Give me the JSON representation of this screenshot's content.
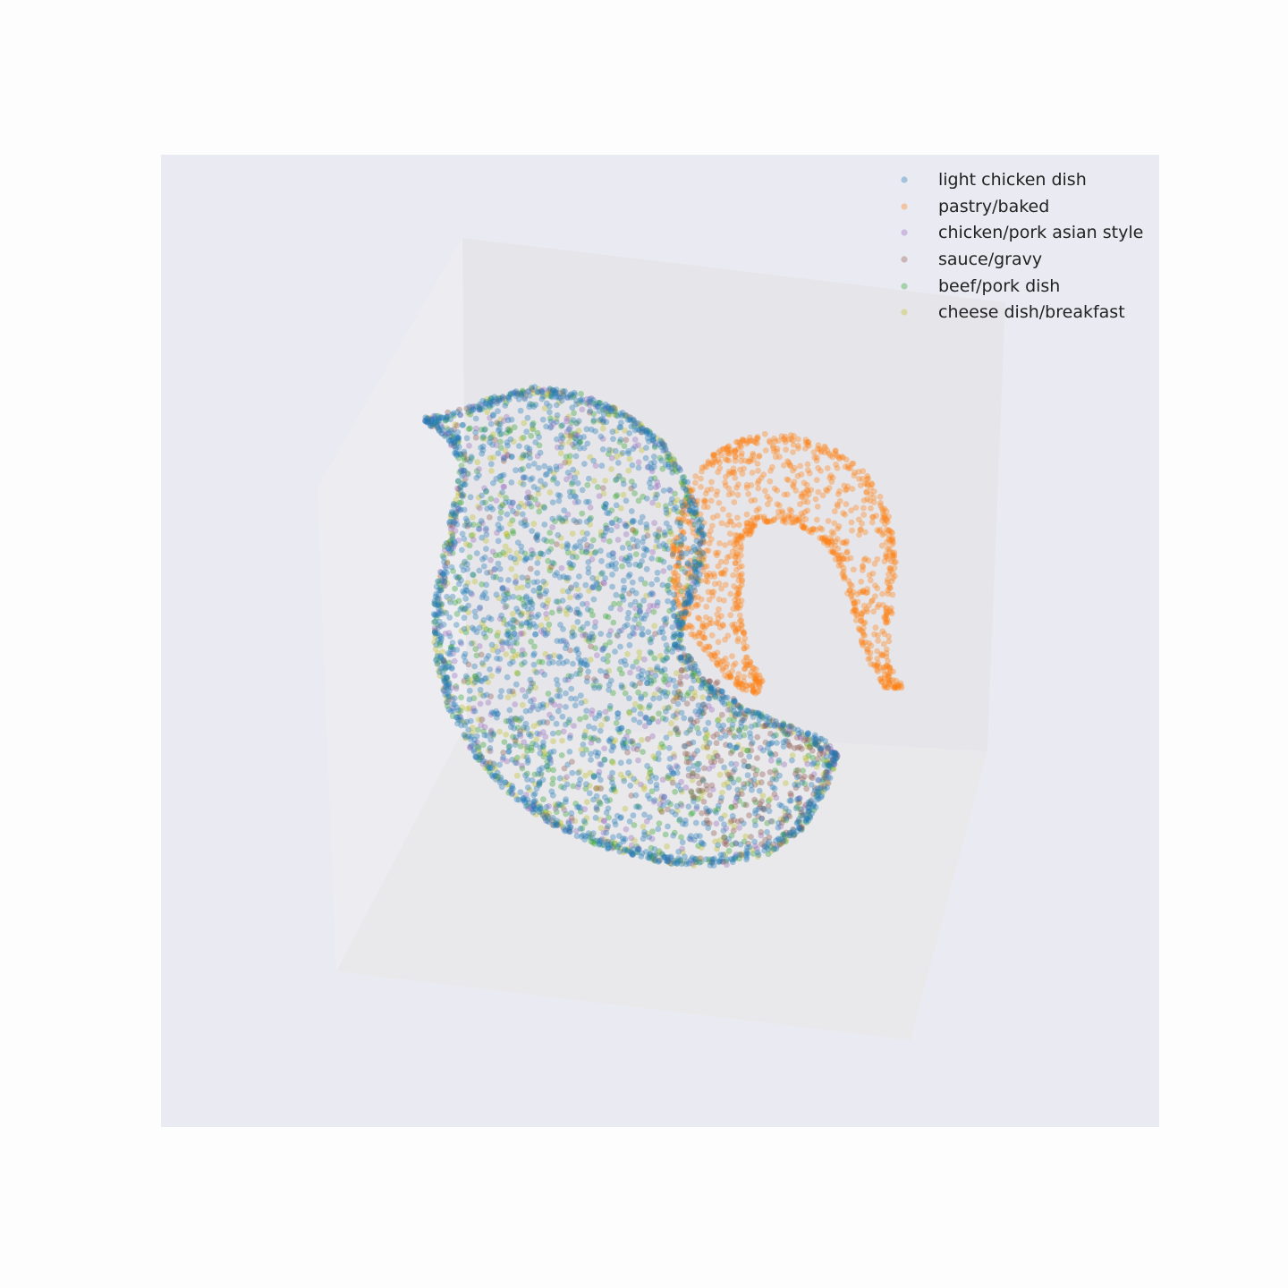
{
  "chart_data": {
    "type": "scatter",
    "projection": "3d",
    "title": "",
    "grid": false,
    "axes_visible": false,
    "legend_placement": "top-right",
    "point_opacity": 0.35,
    "series": [
      {
        "name": "light chicken dish",
        "color": "#1f77b4",
        "count": 2000
      },
      {
        "name": "pastry/baked",
        "color": "#ff7f0e",
        "count": 1100
      },
      {
        "name": "chicken/pork asian style",
        "color": "#9467bd",
        "count": 450
      },
      {
        "name": "sauce/gravy",
        "color": "#8c564b",
        "count": 300
      },
      {
        "name": "beef/pork dish",
        "color": "#2ca02c",
        "count": 650
      },
      {
        "name": "cheese dish/breakfast",
        "color": "#bcbd22",
        "count": 550
      }
    ]
  }
}
